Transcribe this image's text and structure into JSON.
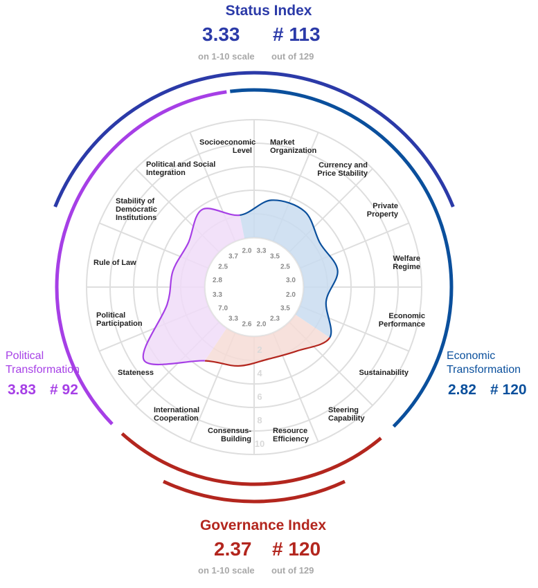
{
  "status_index": {
    "title": "Status Index",
    "score": "3.33",
    "rank": "# 113",
    "score_note": "on 1-10 scale",
    "rank_note": "out of 129",
    "color": "#2b3aa8"
  },
  "governance_index": {
    "title": "Governance Index",
    "score": "2.37",
    "rank": "# 120",
    "score_note": "on 1-10 scale",
    "rank_note": "out of 129",
    "color": "#b3261e"
  },
  "political_transformation": {
    "title_line1": "Political",
    "title_line2": "Transformation",
    "score": "3.83",
    "rank": "# 92",
    "color": "#a63fe6"
  },
  "economic_transformation": {
    "title_line1": "Economic",
    "title_line2": "Transformation",
    "score": "2.82",
    "rank": "# 120",
    "color": "#0a4f9c"
  },
  "chart_data": {
    "type": "radar",
    "scale_ticks": [
      "2",
      "4",
      "6",
      "8",
      "10"
    ],
    "range": [
      0,
      10
    ],
    "categories": [
      {
        "line1": "Market",
        "line2": "Organization",
        "value": 3.3,
        "group": "economic"
      },
      {
        "line1": "Currency and",
        "line2": "Price Stability",
        "value": 3.5,
        "group": "economic"
      },
      {
        "line1": "Private",
        "line2": "Property",
        "value": 2.5,
        "group": "economic"
      },
      {
        "line1": "Welfare",
        "line2": "Regime",
        "value": 3.0,
        "group": "economic"
      },
      {
        "line1": "Economic",
        "line2": "Performance",
        "value": 2.0,
        "group": "economic"
      },
      {
        "line1": "Sustainability",
        "line2": "",
        "value": 3.5,
        "group": "economic"
      },
      {
        "line1": "Steering",
        "line2": "Capability",
        "value": 2.3,
        "group": "governance"
      },
      {
        "line1": "Resource",
        "line2": "Efficiency",
        "value": 2.0,
        "group": "governance"
      },
      {
        "line1": "Consensus-",
        "line2": "Building",
        "value": 2.6,
        "group": "governance"
      },
      {
        "line1": "International",
        "line2": "Cooperation",
        "value": 3.3,
        "group": "governance"
      },
      {
        "line1": "Stateness",
        "line2": "",
        "value": 7.0,
        "group": "political"
      },
      {
        "line1": "Political",
        "line2": "Participation",
        "value": 3.3,
        "group": "political"
      },
      {
        "line1": "Rule of Law",
        "line2": "",
        "value": 2.8,
        "group": "political"
      },
      {
        "line1": "Stability of",
        "line2": "Democratic",
        "line3": "Institutions",
        "value": 2.5,
        "group": "political"
      },
      {
        "line1": "Political and Social",
        "line2": "Integration",
        "value": 3.7,
        "group": "political"
      },
      {
        "line1": "Socioeconomic",
        "line2": "Level",
        "value": 2.0,
        "group": "economic"
      }
    ],
    "group_colors": {
      "economic": {
        "line": "#0a4f9c",
        "fill": "#c9dcf0"
      },
      "governance": {
        "line": "#b3261e",
        "fill": "#f6dcd6"
      },
      "political": {
        "line": "#a63fe6",
        "fill": "#f0dcf8"
      }
    }
  }
}
